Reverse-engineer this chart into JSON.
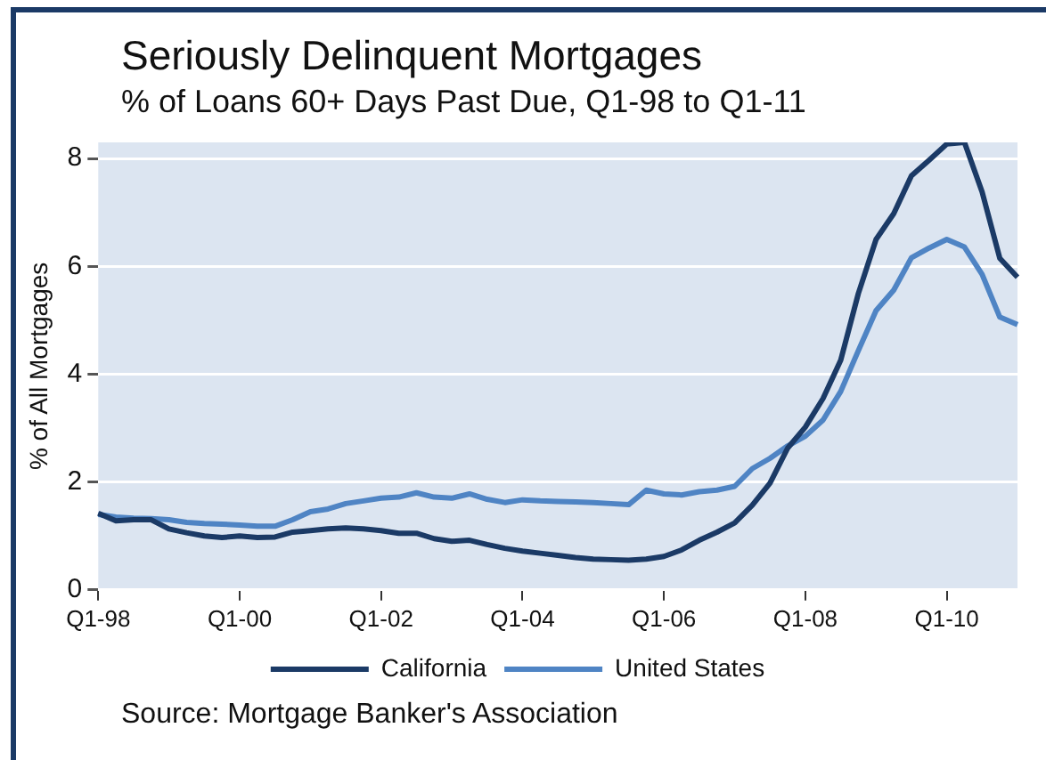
{
  "chart_data": {
    "type": "line",
    "title": "Seriously Delinquent Mortgages",
    "subtitle": "% of Loans 60+ Days Past Due, Q1-98 to Q1-11",
    "ylabel": "% of All Mortgages",
    "categories": [
      "Q1-98",
      null,
      null,
      null,
      null,
      null,
      null,
      null,
      "Q1-00",
      null,
      null,
      null,
      null,
      null,
      null,
      null,
      "Q1-02",
      null,
      null,
      null,
      null,
      null,
      null,
      null,
      "Q1-04",
      null,
      null,
      null,
      null,
      null,
      null,
      null,
      "Q1-06",
      null,
      null,
      null,
      null,
      null,
      null,
      null,
      "Q1-08",
      null,
      null,
      null,
      null,
      null,
      null,
      null,
      "Q1-10",
      null,
      null,
      null,
      null
    ],
    "series": [
      {
        "name": "California",
        "color": "#1b3a66",
        "values": [
          1.42,
          1.28,
          1.3,
          1.3,
          1.13,
          1.06,
          1.0,
          0.97,
          1.0,
          0.97,
          0.98,
          1.07,
          1.1,
          1.13,
          1.15,
          1.13,
          1.1,
          1.05,
          1.05,
          0.95,
          0.9,
          0.92,
          0.84,
          0.77,
          0.72,
          0.68,
          0.64,
          0.6,
          0.57,
          0.56,
          0.55,
          0.57,
          0.62,
          0.74,
          0.92,
          1.07,
          1.24,
          1.57,
          1.98,
          2.63,
          3.02,
          3.55,
          4.26,
          5.5,
          6.5,
          6.98,
          7.68,
          7.97,
          8.27,
          8.3,
          7.38,
          6.15,
          5.8
        ]
      },
      {
        "name": "United States",
        "color": "#4f84c4",
        "values": [
          1.4,
          1.35,
          1.33,
          1.32,
          1.3,
          1.25,
          1.23,
          1.22,
          1.2,
          1.18,
          1.18,
          1.3,
          1.45,
          1.5,
          1.6,
          1.65,
          1.7,
          1.72,
          1.8,
          1.72,
          1.7,
          1.78,
          1.68,
          1.62,
          1.67,
          1.65,
          1.64,
          1.63,
          1.62,
          1.6,
          1.58,
          1.85,
          1.78,
          1.76,
          1.82,
          1.85,
          1.92,
          2.25,
          2.44,
          2.67,
          2.85,
          3.15,
          3.68,
          4.44,
          5.18,
          5.56,
          6.16,
          6.34,
          6.5,
          6.36,
          5.85,
          5.06,
          4.92
        ]
      }
    ],
    "ylim": [
      0,
      8.3
    ],
    "yticks": [
      0,
      2,
      4,
      6,
      8
    ],
    "grid": "y",
    "legend": "bottom",
    "marker": "none",
    "line_style": "solid",
    "annotations": [
      "Source: Mortgage Banker's Association"
    ]
  }
}
